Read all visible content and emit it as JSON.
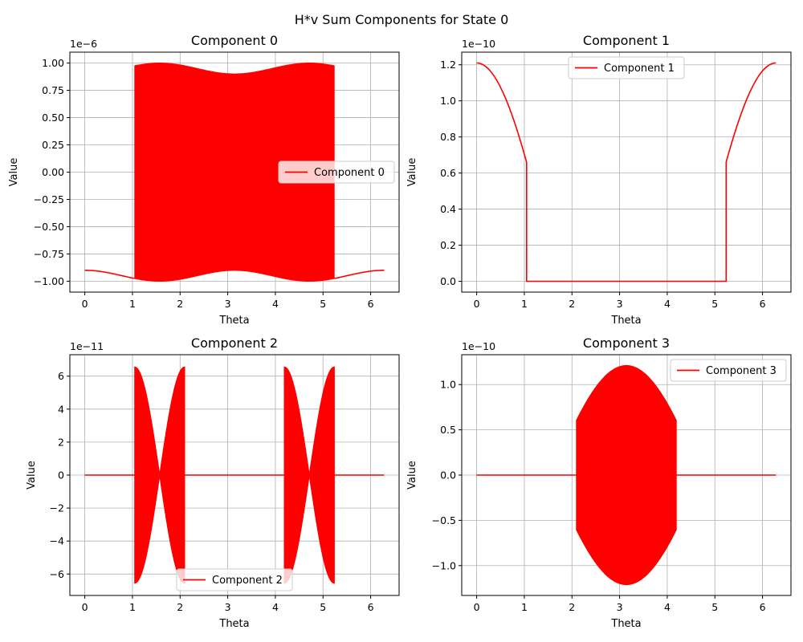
{
  "suptitle": "H*v Sum Components for State 0",
  "colors": {
    "series": "#ff0000",
    "grid": "#b0b0b0",
    "axes": "#000000"
  },
  "chart_data": [
    {
      "type": "line",
      "title": "Component 0",
      "xlabel": "Theta",
      "ylabel": "Value",
      "xlim": [
        -0.314,
        6.597
      ],
      "ylim": [
        -1.1e-06,
        1.1e-06
      ],
      "xticks": [
        0,
        1,
        2,
        3,
        4,
        5,
        6
      ],
      "yticks": [
        -1e-06,
        -7.5e-07,
        -5e-07,
        -2.5e-07,
        0,
        2.5e-07,
        5e-07,
        7.5e-07,
        1e-06
      ],
      "ytick_labels": [
        "−1.00",
        "−0.75",
        "−0.50",
        "−0.25",
        "0.00",
        "0.25",
        "0.50",
        "0.75",
        "1.00"
      ],
      "offset_text": "1e−6",
      "legend": {
        "label": "Component 0",
        "loc": "center right"
      },
      "series": [
        {
          "name": "Component 0",
          "model": "c0"
        }
      ]
    },
    {
      "type": "line",
      "title": "Component 1",
      "xlabel": "Theta",
      "ylabel": "Value",
      "xlim": [
        -0.314,
        6.597
      ],
      "ylim": [
        -6e-12,
        1.27e-10
      ],
      "xticks": [
        0,
        1,
        2,
        3,
        4,
        5,
        6
      ],
      "yticks": [
        0,
        2e-11,
        4e-11,
        6e-11,
        8e-11,
        1e-10,
        1.2e-10
      ],
      "ytick_labels": [
        "0.0",
        "0.2",
        "0.4",
        "0.6",
        "0.8",
        "1.0",
        "1.2"
      ],
      "offset_text": "1e−10",
      "legend": {
        "label": "Component 1",
        "loc": "upper center"
      },
      "series": [
        {
          "name": "Component 1",
          "model": "c1"
        }
      ]
    },
    {
      "type": "line",
      "title": "Component 2",
      "xlabel": "Theta",
      "ylabel": "Value",
      "xlim": [
        -0.314,
        6.597
      ],
      "ylim": [
        -7.3e-11,
        7.3e-11
      ],
      "xticks": [
        0,
        1,
        2,
        3,
        4,
        5,
        6
      ],
      "yticks": [
        -6e-11,
        -4e-11,
        -2e-11,
        0,
        2e-11,
        4e-11,
        6e-11
      ],
      "ytick_labels": [
        "−6",
        "−4",
        "−2",
        "0",
        "2",
        "4",
        "6"
      ],
      "offset_text": "1e−11",
      "legend": {
        "label": "Component 2",
        "loc": "lower center"
      },
      "series": [
        {
          "name": "Component 2",
          "model": "c2"
        }
      ]
    },
    {
      "type": "line",
      "title": "Component 3",
      "xlabel": "Theta",
      "ylabel": "Value",
      "xlim": [
        -0.314,
        6.597
      ],
      "ylim": [
        -1.33e-10,
        1.33e-10
      ],
      "xticks": [
        0,
        1,
        2,
        3,
        4,
        5,
        6
      ],
      "yticks": [
        -1e-10,
        -5e-11,
        0,
        5e-11,
        1e-10
      ],
      "ytick_labels": [
        "−1.0",
        "−0.5",
        "0.0",
        "0.5",
        "1.0"
      ],
      "offset_text": "1e−10",
      "legend": {
        "label": "Component 3",
        "loc": "upper right"
      },
      "series": [
        {
          "name": "Component 3",
          "model": "c3"
        }
      ]
    }
  ]
}
